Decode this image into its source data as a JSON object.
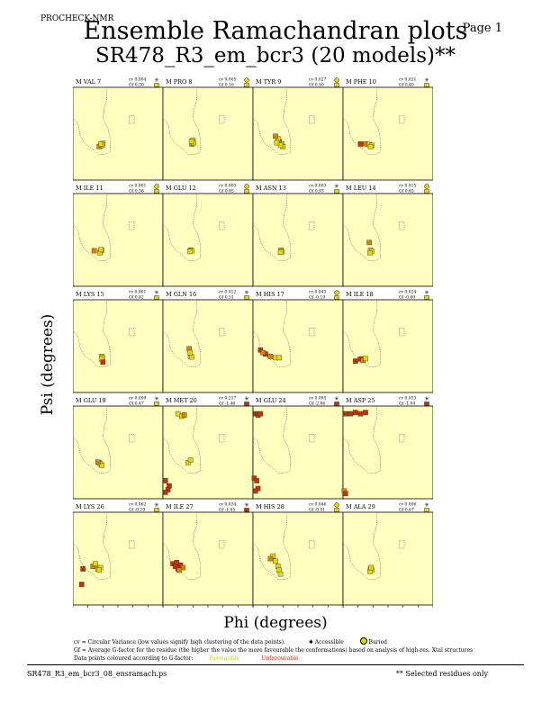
{
  "header": {
    "program": "PROCHECK-NMR",
    "page": "Page 1"
  },
  "title": "Ensemble Ramachandran plots",
  "subtitle": "SR478_R3_em_bcr3 (20 models)**",
  "legend": {
    "line1_cv": "cv = Circular Variance (low values signify high clustering of the data points).",
    "accessible": "Accessible",
    "buried": "Buried",
    "line2_gf": "Gf = Average G-factor for the residue (the higher the value the more favourable the conformations) based on analysis of high-res. Xtal structures",
    "line3": "Data points coloured according to G-factor:",
    "favourable": "Favourable",
    "unfavourable": "Unfavourable"
  },
  "footer": {
    "file": "SR478_R3_em_bcr3_08_ensramach.ps",
    "note": "** Selected residues only"
  },
  "colors": {
    "panel_bg": "#ffffc0",
    "favourable": "#e8d800",
    "unfavourable": "#c83200",
    "mid": "#d88400"
  },
  "chart_data": {
    "type": "scatter",
    "xlabel": "Phi (degrees)",
    "ylabel": "Psi (degrees)",
    "xlim": [
      -180,
      180
    ],
    "ylim": [
      -180,
      180
    ],
    "xticks": [
      "-180",
      "-120",
      "-60",
      "0",
      "60",
      "120",
      "180"
    ],
    "yticks": [
      "120",
      "60",
      "0",
      "-60",
      "-120"
    ],
    "yticks_bottom": [
      "120",
      "60",
      "0",
      "-60",
      "-120",
      "-180"
    ],
    "panels": [
      {
        "label": "M VAL 7",
        "cv": "cv 0.004",
        "gf": "Gf 0.30",
        "acc": "A",
        "gfc": "fav",
        "pts": [
          [
            -65,
            -42,
            "fav"
          ],
          [
            -70,
            -48,
            "fav"
          ],
          [
            -60,
            -38,
            "fav"
          ],
          [
            -75,
            -50,
            "mid"
          ],
          [
            -62,
            -45,
            "fav"
          ],
          [
            -68,
            -40,
            "fav"
          ]
        ]
      },
      {
        "label": "M PRO 8",
        "cv": "cv 0.005",
        "gf": "Gf 0.16",
        "acc": "B",
        "gfc": "fav",
        "pts": [
          [
            -62,
            -32,
            "fav"
          ],
          [
            -64,
            -40,
            "mid"
          ],
          [
            -60,
            -25,
            "fav"
          ],
          [
            -58,
            -35,
            "fav"
          ],
          [
            -66,
            -30,
            "fav"
          ]
        ]
      },
      {
        "label": "M TYR 9",
        "cv": "cv 0.027",
        "gf": "Gf 0.50",
        "acc": "B",
        "gfc": "fav",
        "pts": [
          [
            -75,
            -30,
            "mid"
          ],
          [
            -65,
            -40,
            "fav"
          ],
          [
            -80,
            -20,
            "fav"
          ],
          [
            -60,
            -50,
            "fav"
          ],
          [
            -70,
            -45,
            "fav"
          ],
          [
            -85,
            -35,
            "fav"
          ],
          [
            -90,
            -10,
            "mid"
          ]
        ]
      },
      {
        "label": "M PHE 10",
        "cv": "cv 0.021",
        "gf": "Gf 0.40",
        "acc": "A",
        "gfc": "fav",
        "pts": [
          [
            -110,
            -40,
            "unf"
          ],
          [
            -90,
            -40,
            "mid"
          ],
          [
            -75,
            -42,
            "fav"
          ],
          [
            -65,
            -45,
            "fav"
          ],
          [
            -70,
            -50,
            "fav"
          ]
        ]
      },
      {
        "label": "M ILE 11",
        "cv": "cv 0.001",
        "gf": "Gf 0.56",
        "acc": "B",
        "gfc": "fav",
        "pts": [
          [
            -95,
            -42,
            "mid"
          ],
          [
            -70,
            -45,
            "fav"
          ],
          [
            -65,
            -40,
            "fav"
          ],
          [
            -72,
            -50,
            "fav"
          ],
          [
            -68,
            -38,
            "fav"
          ]
        ]
      },
      {
        "label": "M GLU 12",
        "cv": "cv 0.003",
        "gf": "Gf 0.85",
        "acc": "B",
        "gfc": "fav",
        "pts": [
          [
            -70,
            -40,
            "fav"
          ],
          [
            -65,
            -42,
            "fav"
          ],
          [
            -72,
            -45,
            "fav"
          ]
        ]
      },
      {
        "label": "M ASN 13",
        "cv": "cv 0.003",
        "gf": "Gf 0.93",
        "acc": "A",
        "gfc": "fav",
        "pts": [
          [
            -68,
            -40,
            "fav"
          ],
          [
            -64,
            -45,
            "fav"
          ],
          [
            -70,
            -48,
            "fav"
          ]
        ]
      },
      {
        "label": "M LEU 14",
        "cv": "cv 0.015",
        "gf": "Gf 0.65",
        "acc": "B",
        "gfc": "fav",
        "pts": [
          [
            -75,
            -10,
            "mid"
          ],
          [
            -70,
            -40,
            "fav"
          ],
          [
            -65,
            -45,
            "fav"
          ],
          [
            -72,
            -50,
            "fav"
          ]
        ]
      },
      {
        "label": "M LYS 15",
        "cv": "cv 0.001",
        "gf": "Gf 0.82",
        "acc": "A",
        "gfc": "fav",
        "pts": [
          [
            -65,
            -40,
            "fav"
          ],
          [
            -62,
            -45,
            "fav"
          ],
          [
            -66,
            -50,
            "fav"
          ],
          [
            -60,
            -62,
            "unf"
          ]
        ]
      },
      {
        "label": "M GLN 16",
        "cv": "cv 0.012",
        "gf": "Gf 0.51",
        "acc": "A",
        "gfc": "fav",
        "pts": [
          [
            -75,
            -10,
            "mid"
          ],
          [
            -70,
            -40,
            "fav"
          ],
          [
            -65,
            -42,
            "fav"
          ],
          [
            -72,
            -25,
            "fav"
          ]
        ]
      },
      {
        "label": "M HIS 17",
        "cv": "cv 0.043",
        "gf": "Gf -0.19",
        "acc": "B",
        "gfc": "fav",
        "pts": [
          [
            -150,
            -15,
            "unf"
          ],
          [
            -130,
            -30,
            "unf"
          ],
          [
            -110,
            -40,
            "mid"
          ],
          [
            -90,
            -45,
            "fav"
          ],
          [
            -75,
            -45,
            "fav"
          ],
          [
            -140,
            -25,
            "mid"
          ]
        ]
      },
      {
        "label": "M ILE 18",
        "cv": "cv 0.024",
        "gf": "Gf -0.60",
        "acc": "A",
        "gfc": "fav",
        "pts": [
          [
            -130,
            -58,
            "unf"
          ],
          [
            -110,
            -50,
            "unf"
          ],
          [
            -100,
            -55,
            "mid"
          ],
          [
            -90,
            -48,
            "fav"
          ]
        ]
      },
      {
        "label": "M GLU 19",
        "cv": "cv 0.009",
        "gf": "Gf 0.47",
        "acc": "A",
        "gfc": "fav",
        "pts": [
          [
            -75,
            -40,
            "fav"
          ],
          [
            -70,
            -45,
            "fav"
          ],
          [
            -65,
            -50,
            "fav"
          ],
          [
            -80,
            -38,
            "mid"
          ]
        ]
      },
      {
        "label": "M MET 20",
        "cv": "cv 0.217",
        "gf": "Gf -1.46",
        "acc": "A",
        "gfc": "unf",
        "pts": [
          [
            -120,
            150,
            "fav"
          ],
          [
            -105,
            140,
            "fav"
          ],
          [
            -95,
            145,
            "mid"
          ],
          [
            -80,
            -40,
            "fav"
          ],
          [
            -70,
            -30,
            "fav"
          ],
          [
            -170,
            -110,
            "unf"
          ],
          [
            -155,
            -130,
            "unf"
          ],
          [
            -160,
            -145,
            "unf"
          ],
          [
            -170,
            -155,
            "unf"
          ]
        ]
      },
      {
        "label": "M GLU 24",
        "cv": "cv 0.095",
        "gf": "Gf -2.66",
        "acc": "A",
        "gfc": "unf",
        "pts": [
          [
            -170,
            150,
            "unf"
          ],
          [
            -160,
            145,
            "unf"
          ],
          [
            -150,
            150,
            "unf"
          ],
          [
            -175,
            -100,
            "unf"
          ],
          [
            -165,
            -110,
            "unf"
          ],
          [
            -170,
            -150,
            "unf"
          ],
          [
            -160,
            -140,
            "unf"
          ]
        ]
      },
      {
        "label": "M ASP 25",
        "cv": "cv 0.033",
        "gf": "Gf -1.04",
        "acc": "A",
        "gfc": "unf",
        "pts": [
          [
            -170,
            150,
            "unf"
          ],
          [
            -150,
            150,
            "unf"
          ],
          [
            -130,
            155,
            "unf"
          ],
          [
            -110,
            150,
            "unf"
          ],
          [
            -90,
            155,
            "unf"
          ],
          [
            -175,
            -150,
            "mid"
          ],
          [
            -170,
            -160,
            "unf"
          ]
        ]
      },
      {
        "label": "M LYS 26",
        "cv": "cv 0.062",
        "gf": "Gf -0.19",
        "acc": "A",
        "gfc": "fav",
        "pts": [
          [
            -145,
            -100,
            "unf"
          ],
          [
            -140,
            -40,
            "unf"
          ],
          [
            -100,
            -30,
            "mid"
          ],
          [
            -80,
            -40,
            "fav"
          ],
          [
            -70,
            -35,
            "fav"
          ],
          [
            -75,
            -45,
            "fav"
          ],
          [
            -90,
            -20,
            "fav"
          ]
        ]
      },
      {
        "label": "M ILE 27",
        "cv": "cv 0.034",
        "gf": "Gf -1.65",
        "acc": "A",
        "gfc": "unf",
        "pts": [
          [
            -140,
            -20,
            "unf"
          ],
          [
            -130,
            -30,
            "unf"
          ],
          [
            -120,
            -40,
            "unf"
          ],
          [
            -110,
            -25,
            "unf"
          ],
          [
            -100,
            -35,
            "mid"
          ],
          [
            -125,
            -15,
            "unf"
          ],
          [
            -115,
            -45,
            "mid"
          ]
        ]
      },
      {
        "label": "M HIS 28",
        "cv": "cv 0.046",
        "gf": "Gf -0.01",
        "acc": "B",
        "gfc": "fav",
        "pts": [
          [
            -100,
            10,
            "fav"
          ],
          [
            -90,
            -10,
            "fav"
          ],
          [
            -80,
            -30,
            "fav"
          ],
          [
            -75,
            -45,
            "fav"
          ],
          [
            -70,
            -60,
            "fav"
          ],
          [
            -110,
            0,
            "mid"
          ]
        ]
      },
      {
        "label": "M ALA 29",
        "cv": "cv 0.006",
        "gf": "Gf 0.67",
        "acc": "A",
        "gfc": "fav",
        "pts": [
          [
            -70,
            -40,
            "fav"
          ],
          [
            -65,
            -45,
            "fav"
          ],
          [
            -72,
            -50,
            "fav"
          ],
          [
            -68,
            -35,
            "fav"
          ]
        ]
      }
    ]
  }
}
